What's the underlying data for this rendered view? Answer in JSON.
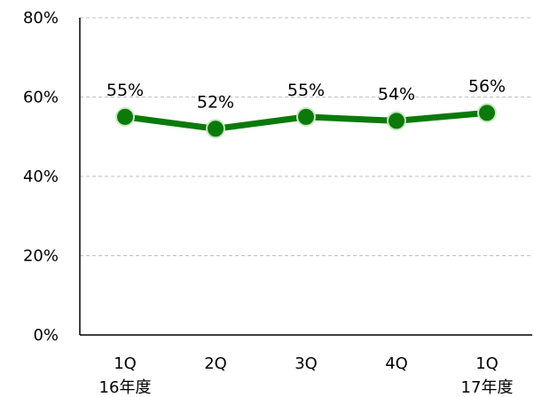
{
  "chart_data": {
    "type": "line",
    "categories": [
      [
        "1Q",
        "16年度"
      ],
      [
        "2Q",
        ""
      ],
      [
        "3Q",
        ""
      ],
      [
        "4Q",
        ""
      ],
      [
        "1Q",
        "17年度"
      ]
    ],
    "series": [
      {
        "values": [
          55,
          52,
          55,
          54,
          56
        ],
        "color": "#0a7a0a",
        "marker_color": "#0a7a0a",
        "marker_edge": "#c8e6c0"
      }
    ],
    "data_labels": [
      "55%",
      "52%",
      "55%",
      "54%",
      "56%"
    ],
    "y_ticks": [
      "0%",
      "20%",
      "40%",
      "60%",
      "80%"
    ],
    "y_tick_values": [
      0,
      20,
      40,
      60,
      80
    ],
    "ylim": [
      0,
      80
    ],
    "grid": true,
    "title": "",
    "xlabel": "",
    "ylabel": ""
  }
}
